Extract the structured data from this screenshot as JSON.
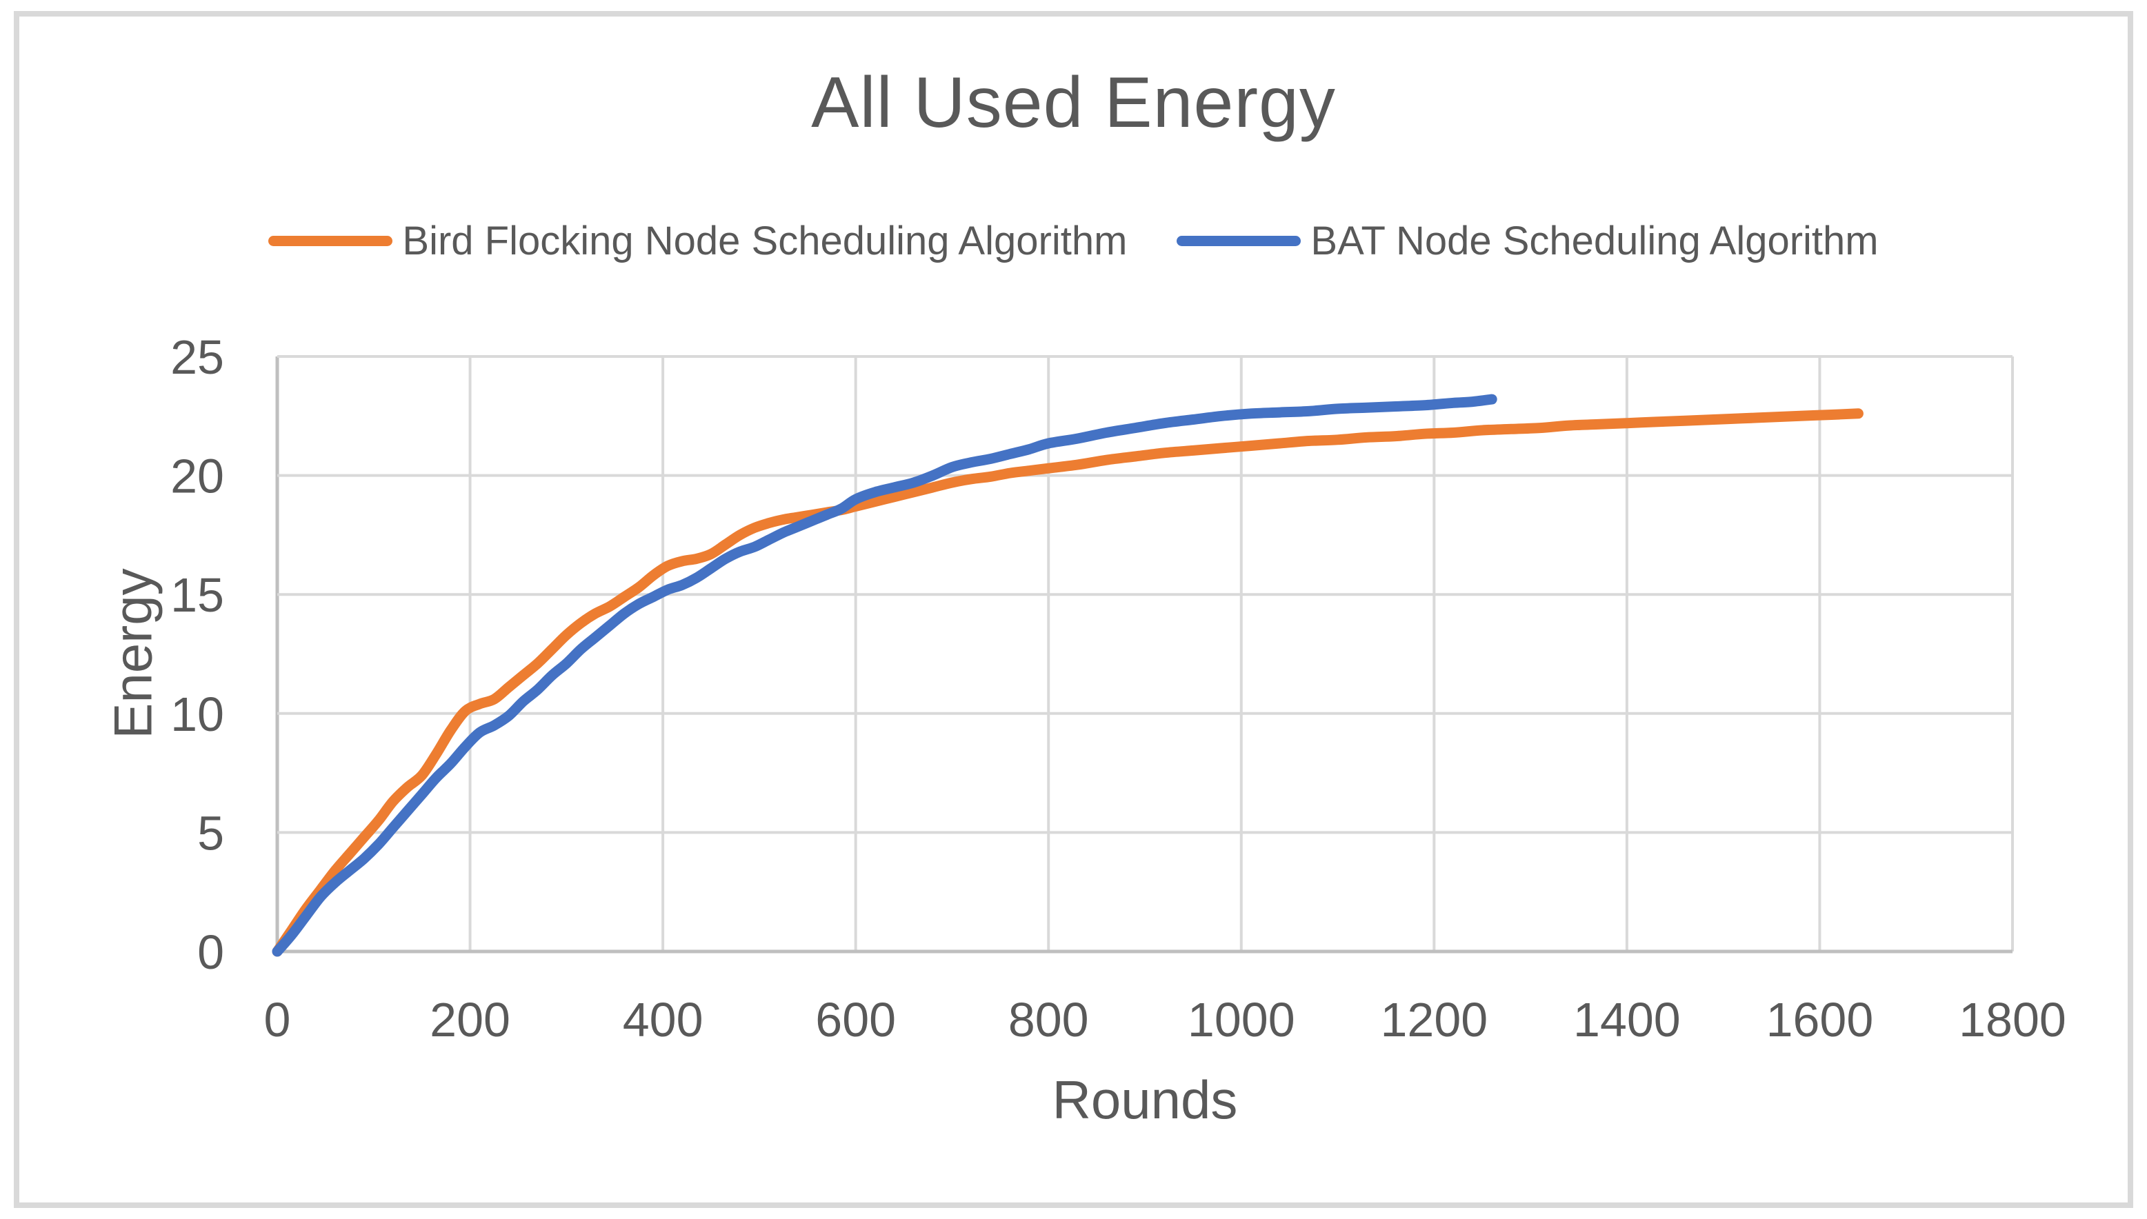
{
  "chart_data": {
    "type": "line",
    "title": "All Used Energy",
    "xlabel": "Rounds",
    "ylabel": "Energy",
    "xlim": [
      0,
      1800
    ],
    "ylim": [
      0,
      25
    ],
    "xticks": [
      0,
      200,
      400,
      600,
      800,
      1000,
      1200,
      1400,
      1600,
      1800
    ],
    "yticks": [
      0,
      5,
      10,
      15,
      20,
      25
    ],
    "grid": true,
    "legend_position": "top",
    "colors": {
      "text": "#595959",
      "gridline": "#D9D9D9",
      "axis": "#BFBFBF",
      "frame_border": "#D9D9D9",
      "background": "#FFFFFF"
    },
    "series": [
      {
        "name": "Bird Flocking Node Scheduling Algorithm",
        "color": "#ED7D31",
        "points": [
          [
            0,
            0
          ],
          [
            15,
            0.9
          ],
          [
            30,
            1.8
          ],
          [
            45,
            2.6
          ],
          [
            60,
            3.4
          ],
          [
            75,
            4.1
          ],
          [
            90,
            4.8
          ],
          [
            105,
            5.5
          ],
          [
            120,
            6.3
          ],
          [
            135,
            6.9
          ],
          [
            150,
            7.4
          ],
          [
            165,
            8.3
          ],
          [
            180,
            9.3
          ],
          [
            195,
            10.1
          ],
          [
            210,
            10.4
          ],
          [
            225,
            10.6
          ],
          [
            240,
            11.1
          ],
          [
            255,
            11.6
          ],
          [
            270,
            12.1
          ],
          [
            285,
            12.7
          ],
          [
            300,
            13.3
          ],
          [
            315,
            13.8
          ],
          [
            330,
            14.2
          ],
          [
            345,
            14.5
          ],
          [
            360,
            14.9
          ],
          [
            375,
            15.3
          ],
          [
            390,
            15.8
          ],
          [
            405,
            16.2
          ],
          [
            420,
            16.4
          ],
          [
            435,
            16.5
          ],
          [
            450,
            16.7
          ],
          [
            465,
            17.1
          ],
          [
            480,
            17.5
          ],
          [
            495,
            17.8
          ],
          [
            510,
            18.0
          ],
          [
            525,
            18.15
          ],
          [
            540,
            18.25
          ],
          [
            555,
            18.35
          ],
          [
            570,
            18.45
          ],
          [
            585,
            18.55
          ],
          [
            600,
            18.7
          ],
          [
            620,
            18.9
          ],
          [
            640,
            19.1
          ],
          [
            660,
            19.3
          ],
          [
            680,
            19.5
          ],
          [
            700,
            19.7
          ],
          [
            720,
            19.85
          ],
          [
            740,
            19.95
          ],
          [
            760,
            20.1
          ],
          [
            780,
            20.2
          ],
          [
            800,
            20.3
          ],
          [
            830,
            20.45
          ],
          [
            860,
            20.65
          ],
          [
            890,
            20.8
          ],
          [
            920,
            20.95
          ],
          [
            950,
            21.05
          ],
          [
            980,
            21.15
          ],
          [
            1010,
            21.25
          ],
          [
            1040,
            21.35
          ],
          [
            1070,
            21.45
          ],
          [
            1100,
            21.5
          ],
          [
            1130,
            21.6
          ],
          [
            1160,
            21.65
          ],
          [
            1190,
            21.75
          ],
          [
            1220,
            21.8
          ],
          [
            1250,
            21.9
          ],
          [
            1280,
            21.95
          ],
          [
            1310,
            22.0
          ],
          [
            1340,
            22.1
          ],
          [
            1370,
            22.15
          ],
          [
            1400,
            22.2
          ],
          [
            1430,
            22.25
          ],
          [
            1460,
            22.3
          ],
          [
            1490,
            22.35
          ],
          [
            1520,
            22.4
          ],
          [
            1550,
            22.45
          ],
          [
            1580,
            22.5
          ],
          [
            1610,
            22.55
          ],
          [
            1640,
            22.6
          ]
        ]
      },
      {
        "name": "BAT Node Scheduling Algorithm",
        "color": "#4472C4",
        "points": [
          [
            0,
            0
          ],
          [
            15,
            0.7
          ],
          [
            30,
            1.5
          ],
          [
            45,
            2.3
          ],
          [
            60,
            2.9
          ],
          [
            75,
            3.4
          ],
          [
            90,
            3.9
          ],
          [
            105,
            4.5
          ],
          [
            120,
            5.2
          ],
          [
            135,
            5.9
          ],
          [
            150,
            6.6
          ],
          [
            165,
            7.3
          ],
          [
            180,
            7.9
          ],
          [
            195,
            8.6
          ],
          [
            210,
            9.2
          ],
          [
            225,
            9.5
          ],
          [
            240,
            9.9
          ],
          [
            255,
            10.5
          ],
          [
            270,
            11.0
          ],
          [
            285,
            11.6
          ],
          [
            300,
            12.1
          ],
          [
            315,
            12.7
          ],
          [
            330,
            13.2
          ],
          [
            345,
            13.7
          ],
          [
            360,
            14.2
          ],
          [
            375,
            14.6
          ],
          [
            390,
            14.9
          ],
          [
            405,
            15.2
          ],
          [
            420,
            15.4
          ],
          [
            435,
            15.7
          ],
          [
            450,
            16.1
          ],
          [
            465,
            16.5
          ],
          [
            480,
            16.8
          ],
          [
            495,
            17.0
          ],
          [
            510,
            17.3
          ],
          [
            525,
            17.6
          ],
          [
            540,
            17.85
          ],
          [
            555,
            18.1
          ],
          [
            570,
            18.35
          ],
          [
            585,
            18.6
          ],
          [
            600,
            19.0
          ],
          [
            620,
            19.3
          ],
          [
            640,
            19.5
          ],
          [
            660,
            19.7
          ],
          [
            680,
            20.0
          ],
          [
            700,
            20.35
          ],
          [
            720,
            20.55
          ],
          [
            740,
            20.7
          ],
          [
            760,
            20.9
          ],
          [
            780,
            21.1
          ],
          [
            800,
            21.35
          ],
          [
            830,
            21.55
          ],
          [
            860,
            21.8
          ],
          [
            890,
            22.0
          ],
          [
            920,
            22.2
          ],
          [
            950,
            22.35
          ],
          [
            980,
            22.5
          ],
          [
            1010,
            22.6
          ],
          [
            1040,
            22.65
          ],
          [
            1070,
            22.7
          ],
          [
            1100,
            22.8
          ],
          [
            1130,
            22.85
          ],
          [
            1160,
            22.9
          ],
          [
            1190,
            22.95
          ],
          [
            1220,
            23.05
          ],
          [
            1240,
            23.1
          ],
          [
            1260,
            23.2
          ]
        ]
      }
    ]
  }
}
